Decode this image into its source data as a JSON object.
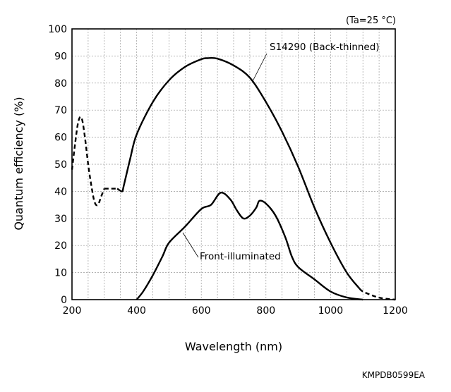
{
  "chart_data": {
    "type": "line",
    "condition": "(Ta=25 °C)",
    "xlabel": "Wavelength (nm)",
    "ylabel": "Quantum efficiency (%)",
    "xlim": [
      200,
      1200
    ],
    "ylim": [
      0,
      100
    ],
    "xticks": [
      200,
      400,
      600,
      800,
      1000,
      1200
    ],
    "yticks": [
      0,
      10,
      20,
      30,
      40,
      50,
      60,
      70,
      80,
      90,
      100
    ],
    "grid": true,
    "code": "KMPDB0599EA",
    "series": [
      {
        "name": "S14290 (Back-thinned)",
        "segments": [
          {
            "style": "dashed",
            "x": [
              200,
              210,
              220,
              230,
              240,
              250,
              260,
              270,
              280,
              290,
              300
            ],
            "y": [
              48,
              58,
              66,
              67,
              60,
              50,
              42,
              36,
              35,
              38,
              41
            ]
          },
          {
            "style": "dashed",
            "x": [
              300,
              320,
              340
            ],
            "y": [
              41,
              41,
              41
            ]
          },
          {
            "style": "solid",
            "x": [
              340,
              355,
              360,
              380,
              400,
              450,
              500,
              550,
              600,
              620,
              650,
              700,
              750,
              800,
              850,
              900,
              950,
              1000,
              1050,
              1090
            ],
            "y": [
              41,
              40,
              42,
              52,
              61,
              73,
              81,
              86,
              88.8,
              89.2,
              89,
              86.5,
              82,
              73,
              62,
              49,
              34,
              21,
              10,
              4
            ]
          },
          {
            "style": "dashed",
            "x": [
              1090,
              1100,
              1130,
              1160,
              1200
            ],
            "y": [
              4,
              3,
              1.5,
              0.5,
              0
            ]
          }
        ]
      },
      {
        "name": "Front-illuminated",
        "segments": [
          {
            "style": "solid",
            "x": [
              400,
              420,
              450,
              480,
              500,
              550,
              600,
              630,
              660,
              690,
              710,
              730,
              750,
              770,
              780,
              800,
              830,
              860,
              880,
              900,
              950,
              1000,
              1050,
              1100
            ],
            "y": [
              0,
              3,
              9,
              16,
              21,
              27,
              33.5,
              35,
              39.5,
              37,
              33,
              30,
              31,
              34,
              36.5,
              35.5,
              31,
              23,
              16,
              12,
              7.5,
              3,
              0.8,
              0
            ]
          }
        ]
      }
    ],
    "annotations": [
      "S14290 (Back-thinned)",
      "Front-illuminated"
    ]
  }
}
